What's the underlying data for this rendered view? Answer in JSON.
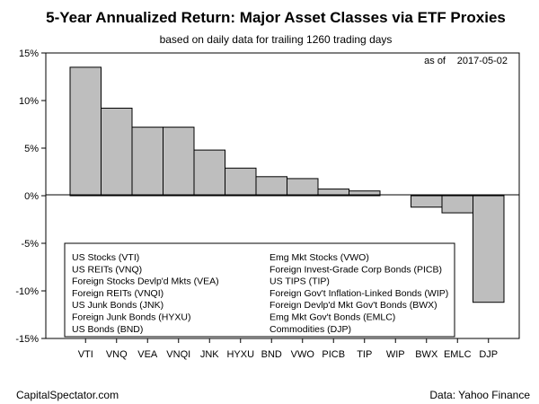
{
  "chart_data": {
    "type": "bar",
    "title": "5-Year Annualized Return: Major Asset Classes via ETF Proxies",
    "subtitle": "based on daily data for trailing 1260 trading days",
    "as_of_label": "as of",
    "as_of_date": "2017-05-02",
    "categories": [
      "VTI",
      "VNQ",
      "VEA",
      "VNQI",
      "JNK",
      "HYXU",
      "BND",
      "VWO",
      "PICB",
      "TIP",
      "WIP",
      "BWX",
      "EMLC",
      "DJP"
    ],
    "values": [
      13.5,
      9.2,
      7.2,
      7.2,
      4.8,
      2.9,
      2.0,
      1.8,
      0.7,
      0.5,
      0.0,
      -1.2,
      -1.8,
      -11.2
    ],
    "ylim": [
      -15,
      15
    ],
    "yticks": [
      -15,
      -10,
      -5,
      0,
      5,
      10,
      15
    ],
    "ytick_labels": [
      "-15%",
      "-10%",
      "-5%",
      "0%",
      "5%",
      "10%",
      "15%"
    ],
    "xlabel": "",
    "ylabel": "",
    "bar_color": "#bebebe",
    "legend": {
      "placement": "bottom-left",
      "entries": [
        "US Stocks (VTI)",
        "US REITs (VNQ)",
        "Foreign Stocks Devlp'd Mkts (VEA)",
        "Foreign REITs (VNQI)",
        "US Junk Bonds (JNK)",
        "Foreign Junk Bonds (HYXU)",
        "US Bonds (BND)",
        "Emg Mkt Stocks (VWO)",
        "Foreign Invest-Grade Corp Bonds (PICB)",
        "US TIPS (TIP)",
        "Foreign Gov't Inflation-Linked Bonds (WIP)",
        "Foreign Devlp'd Mkt Gov't Bonds (BWX)",
        "Emg Mkt Gov't Bonds (EMLC)",
        "Commodities (DJP)"
      ]
    },
    "grid": false
  },
  "footer": {
    "left": "CapitalSpectator.com",
    "right": "Data: Yahoo Finance"
  }
}
